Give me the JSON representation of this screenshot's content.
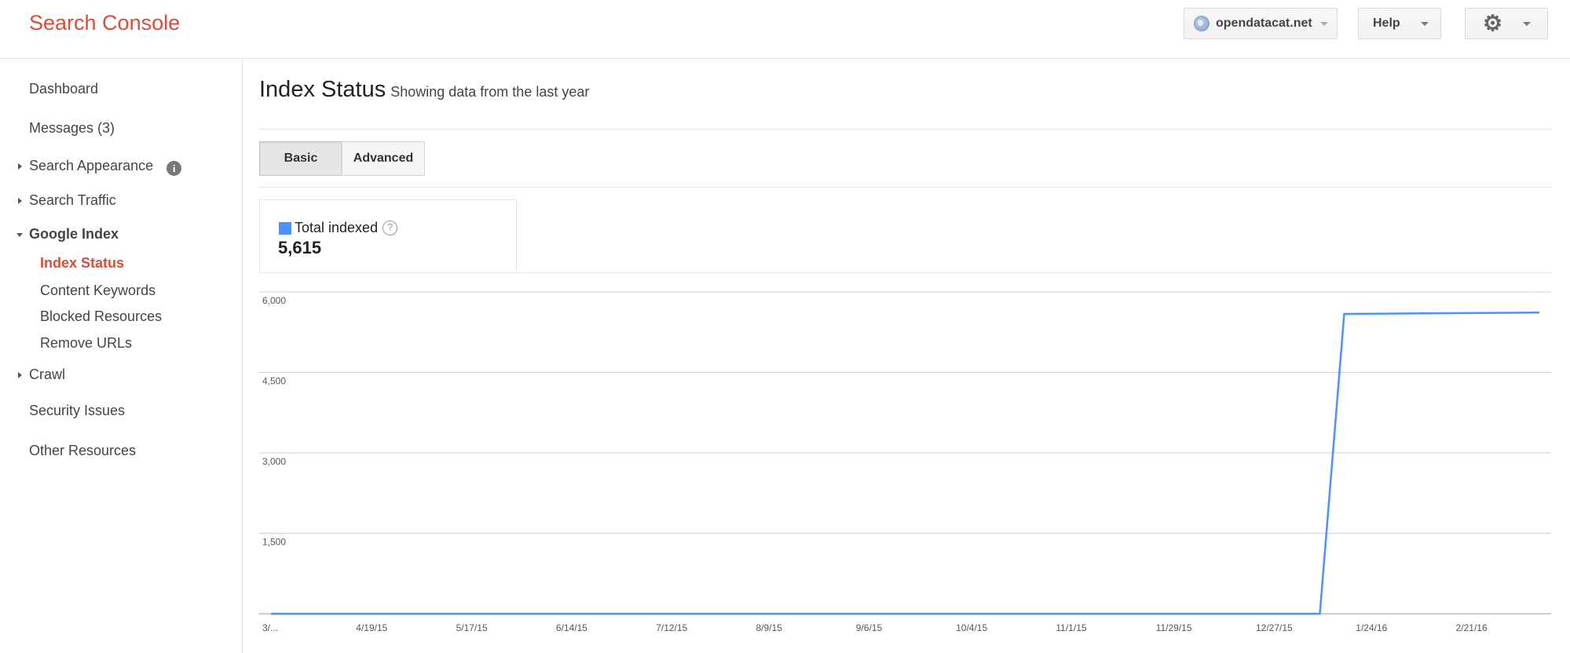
{
  "header": {
    "logo": "Search Console",
    "site": "opendatacat.net",
    "help_label": "Help",
    "icons": {
      "site": "globe-icon",
      "settings": "gear-icon"
    }
  },
  "sidebar": {
    "items": [
      {
        "label": "Dashboard"
      },
      {
        "label": "Messages (3)"
      },
      {
        "label": "Search Appearance"
      },
      {
        "label": "Search Traffic"
      },
      {
        "label": "Google Index"
      },
      {
        "label": "Index Status"
      },
      {
        "label": "Content Keywords"
      },
      {
        "label": "Blocked Resources"
      },
      {
        "label": "Remove URLs"
      },
      {
        "label": "Crawl"
      },
      {
        "label": "Security Issues"
      },
      {
        "label": "Other Resources"
      }
    ],
    "active": "Index Status"
  },
  "main": {
    "title": "Index Status",
    "subtitle": "Showing data from the last year",
    "tabs": [
      {
        "label": "Basic",
        "selected": true
      },
      {
        "label": "Advanced",
        "selected": false
      }
    ],
    "metric": {
      "label": "Total indexed",
      "value": "5,615",
      "color": "#4d90fe"
    }
  },
  "chart_data": {
    "type": "line",
    "ylim": [
      0,
      6000
    ],
    "yticks": [
      "6,000",
      "4,500",
      "3,000",
      "1,500"
    ],
    "xticks": [
      "3/...",
      "4/19/15",
      "5/17/15",
      "6/14/15",
      "7/12/15",
      "8/9/15",
      "9/6/15",
      "10/4/15",
      "11/1/15",
      "11/29/15",
      "12/27/15",
      "1/24/16",
      "2/21/16"
    ],
    "series": [
      {
        "color": "#4d90fe",
        "points": [
          {
            "x": "3/15/15",
            "y": 0
          },
          {
            "x": "1/10/16",
            "y": 0
          },
          {
            "x": "1/17/16",
            "y": 5590
          },
          {
            "x": "3/13/16",
            "y": 5615
          }
        ]
      }
    ]
  }
}
